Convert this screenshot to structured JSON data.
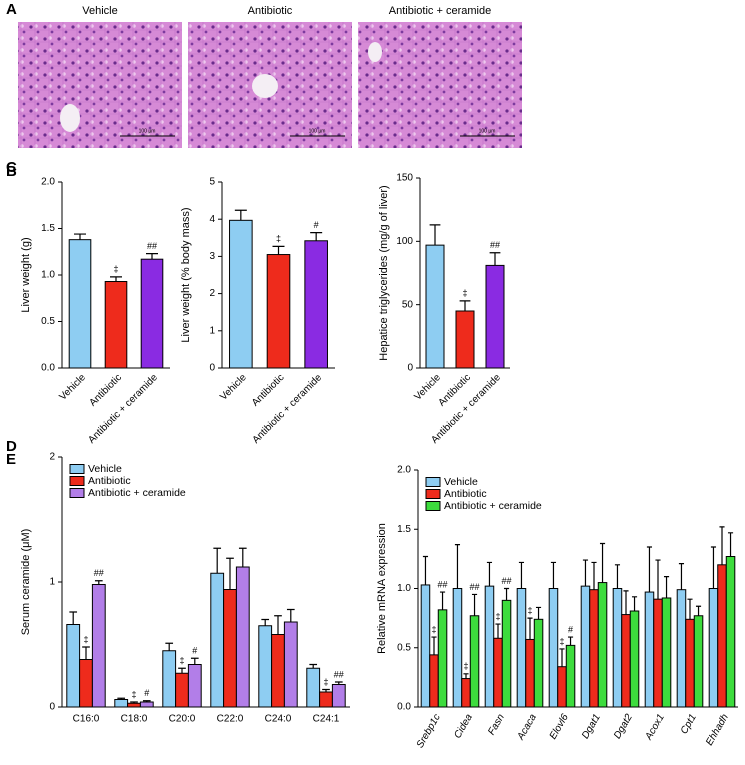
{
  "histology": {
    "panel": "A",
    "titles": [
      "Vehicle",
      "Antibiotic",
      "Antibiotic + ceramide"
    ],
    "scale_bar_label": "100 µm"
  },
  "chart_data": [
    {
      "type": "bar",
      "panel": "B",
      "y_label": "Liver weight (g)",
      "categories": [
        "Vehicle",
        "Antibiotic",
        "Antibiotic + ceramide"
      ],
      "values": [
        1.38,
        0.93,
        1.17
      ],
      "errors": [
        0.06,
        0.05,
        0.06
      ],
      "markers": [
        null,
        "‡",
        "##"
      ],
      "colors": [
        "#8ecdf2",
        "#ee2b1c",
        "#8a2be2"
      ],
      "ylim": [
        0,
        2
      ],
      "yticks": [
        {
          "value": 0,
          "label": "0.0"
        },
        0.5,
        {
          "value": 1,
          "label": "1.0"
        },
        1.5,
        {
          "value": 2,
          "label": "2.0"
        }
      ]
    },
    {
      "type": "bar",
      "y_label": "Liver weight (% body mass)",
      "categories": [
        "Vehicle",
        "Antibiotic",
        "Antibiotic + ceramide"
      ],
      "values": [
        3.97,
        3.05,
        3.42
      ],
      "errors": [
        0.27,
        0.22,
        0.22
      ],
      "markers": [
        null,
        "‡",
        "#"
      ],
      "colors": [
        "#8ecdf2",
        "#ee2b1c",
        "#8a2be2"
      ],
      "ylim": [
        0,
        5
      ],
      "yticks": [
        0,
        1,
        2,
        3,
        4,
        5
      ]
    },
    {
      "type": "bar",
      "panel": "C",
      "y_label": "Hepatice triglycerides (mg/g of liver)",
      "categories": [
        "Vehicle",
        "Antibiotic",
        "Antibiotic + ceramide"
      ],
      "values": [
        97,
        45,
        81
      ],
      "errors": [
        16,
        8,
        10
      ],
      "markers": [
        null,
        "‡",
        "##"
      ],
      "colors": [
        "#8ecdf2",
        "#ee2b1c",
        "#8a2be2"
      ],
      "ylim": [
        0,
        150
      ],
      "yticks": [
        0,
        50,
        100,
        150
      ]
    },
    {
      "type": "bar",
      "panel": "D",
      "y_label": "Serum ceramide (μM)",
      "legend": "upper left",
      "categories": [
        "C16:0",
        "C18:0",
        "C20:0",
        "C22:0",
        "C24:0",
        "C24:1"
      ],
      "series": [
        {
          "name": "Vehicle",
          "color": "#8ecdf2",
          "values": [
            0.66,
            0.06,
            0.45,
            1.07,
            0.65,
            0.31
          ],
          "errors": [
            0.1,
            0.01,
            0.06,
            0.2,
            0.05,
            0.03
          ],
          "markers": [
            null,
            null,
            null,
            null,
            null,
            null
          ]
        },
        {
          "name": "Antibiotic",
          "color": "#ee2b1c",
          "values": [
            0.38,
            0.03,
            0.27,
            0.94,
            0.58,
            0.12
          ],
          "errors": [
            0.1,
            0.01,
            0.04,
            0.25,
            0.15,
            0.02
          ],
          "markers": [
            "‡",
            "‡",
            "‡",
            null,
            null,
            "‡"
          ]
        },
        {
          "name": "Antibiotic + ceramide",
          "color": "#b27ee8",
          "values": [
            0.98,
            0.04,
            0.34,
            1.12,
            0.68,
            0.18
          ],
          "errors": [
            0.03,
            0.01,
            0.05,
            0.15,
            0.1,
            0.02
          ],
          "markers": [
            "##",
            "#",
            "#",
            null,
            null,
            "##"
          ]
        }
      ],
      "ylim": [
        0,
        2
      ],
      "yticks": [
        0,
        1,
        2
      ]
    },
    {
      "type": "bar",
      "panel": "E",
      "y_label": "Relative mRNA expression",
      "legend": "upper left",
      "italic_categories": true,
      "categories": [
        "Srebp1c",
        "Cidea",
        "Fasn",
        "Acaca",
        "Elovl6",
        "Dgat1",
        "Dgat2",
        "Acox1",
        "Cpt1",
        "Ehhadh"
      ],
      "series": [
        {
          "name": "Vehicle",
          "color": "#8ecdf2",
          "values": [
            1.03,
            1.0,
            1.02,
            1.0,
            1.0,
            1.02,
            1.0,
            0.97,
            0.99,
            1.0
          ],
          "errors": [
            0.24,
            0.37,
            0.2,
            0.22,
            0.22,
            0.22,
            0.2,
            0.38,
            0.22,
            0.35
          ],
          "markers": [
            null,
            null,
            null,
            null,
            null,
            null,
            null,
            null,
            null,
            null
          ]
        },
        {
          "name": "Antibiotic",
          "color": "#ee2b1c",
          "values": [
            0.44,
            0.24,
            0.58,
            0.57,
            0.34,
            0.99,
            0.78,
            0.91,
            0.74,
            1.2
          ],
          "errors": [
            0.15,
            0.04,
            0.12,
            0.18,
            0.15,
            0.23,
            0.2,
            0.33,
            0.17,
            0.32
          ],
          "markers": [
            "‡",
            "‡",
            "‡",
            "‡",
            "‡",
            null,
            null,
            null,
            null,
            null
          ]
        },
        {
          "name": "Antibiotic + ceramide",
          "color": "#3ddc3d",
          "values": [
            0.82,
            0.77,
            0.9,
            0.74,
            0.52,
            1.05,
            0.81,
            0.92,
            0.77,
            1.27
          ],
          "errors": [
            0.15,
            0.18,
            0.1,
            0.1,
            0.07,
            0.33,
            0.12,
            0.18,
            0.08,
            0.2
          ],
          "markers": [
            "##",
            "##",
            "##",
            null,
            "#",
            null,
            null,
            null,
            null,
            null
          ]
        }
      ],
      "ylim": [
        0,
        2
      ],
      "yticks": [
        {
          "value": 0,
          "label": "0.0"
        },
        0.5,
        {
          "value": 1,
          "label": "1.0"
        },
        1.5,
        {
          "value": 2,
          "label": "2.0"
        }
      ]
    }
  ]
}
